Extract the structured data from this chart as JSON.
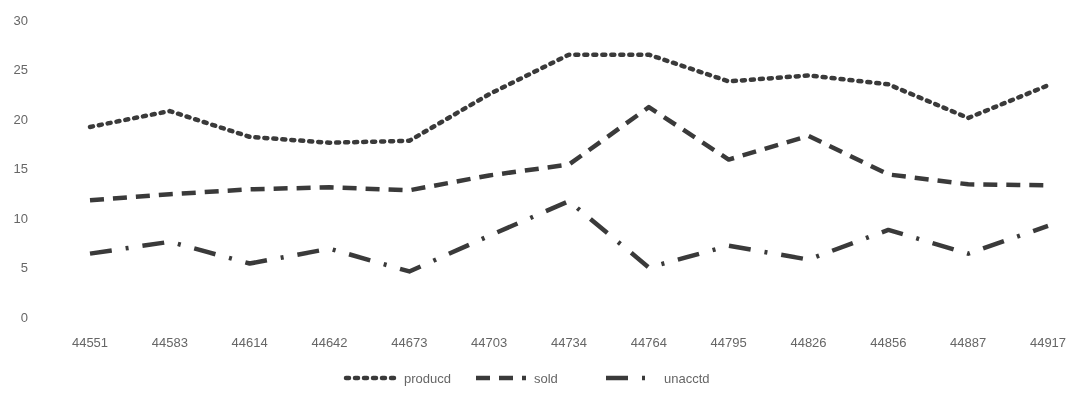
{
  "chart_data": {
    "type": "line",
    "categories": [
      "44551",
      "44583",
      "44614",
      "44642",
      "44673",
      "44703",
      "44734",
      "44764",
      "44795",
      "44826",
      "44856",
      "44887",
      "44917"
    ],
    "series": [
      {
        "name": "producd",
        "color": "#3a3a3a",
        "line_style": "dotted",
        "values": [
          19.2,
          20.8,
          18.2,
          17.6,
          17.8,
          22.5,
          26.5,
          26.5,
          23.8,
          24.4,
          23.5,
          20.1,
          23.4
        ]
      },
      {
        "name": "sold",
        "color": "#3a3a3a",
        "line_style": "dashed",
        "values": [
          11.8,
          12.4,
          12.9,
          13.1,
          12.8,
          14.3,
          15.4,
          21.2,
          15.9,
          18.3,
          14.4,
          13.4,
          13.3
        ]
      },
      {
        "name": "unacctd",
        "color": "#3a3a3a",
        "line_style": "dashdot",
        "values": [
          6.4,
          7.6,
          5.4,
          6.9,
          4.6,
          8.2,
          11.7,
          5.0,
          7.2,
          5.8,
          8.8,
          6.4,
          9.2
        ]
      }
    ],
    "ylim": [
      0,
      30
    ],
    "yticks": [
      0,
      5,
      10,
      15,
      20,
      25,
      30
    ],
    "legend": "bottom",
    "marker": "none"
  }
}
